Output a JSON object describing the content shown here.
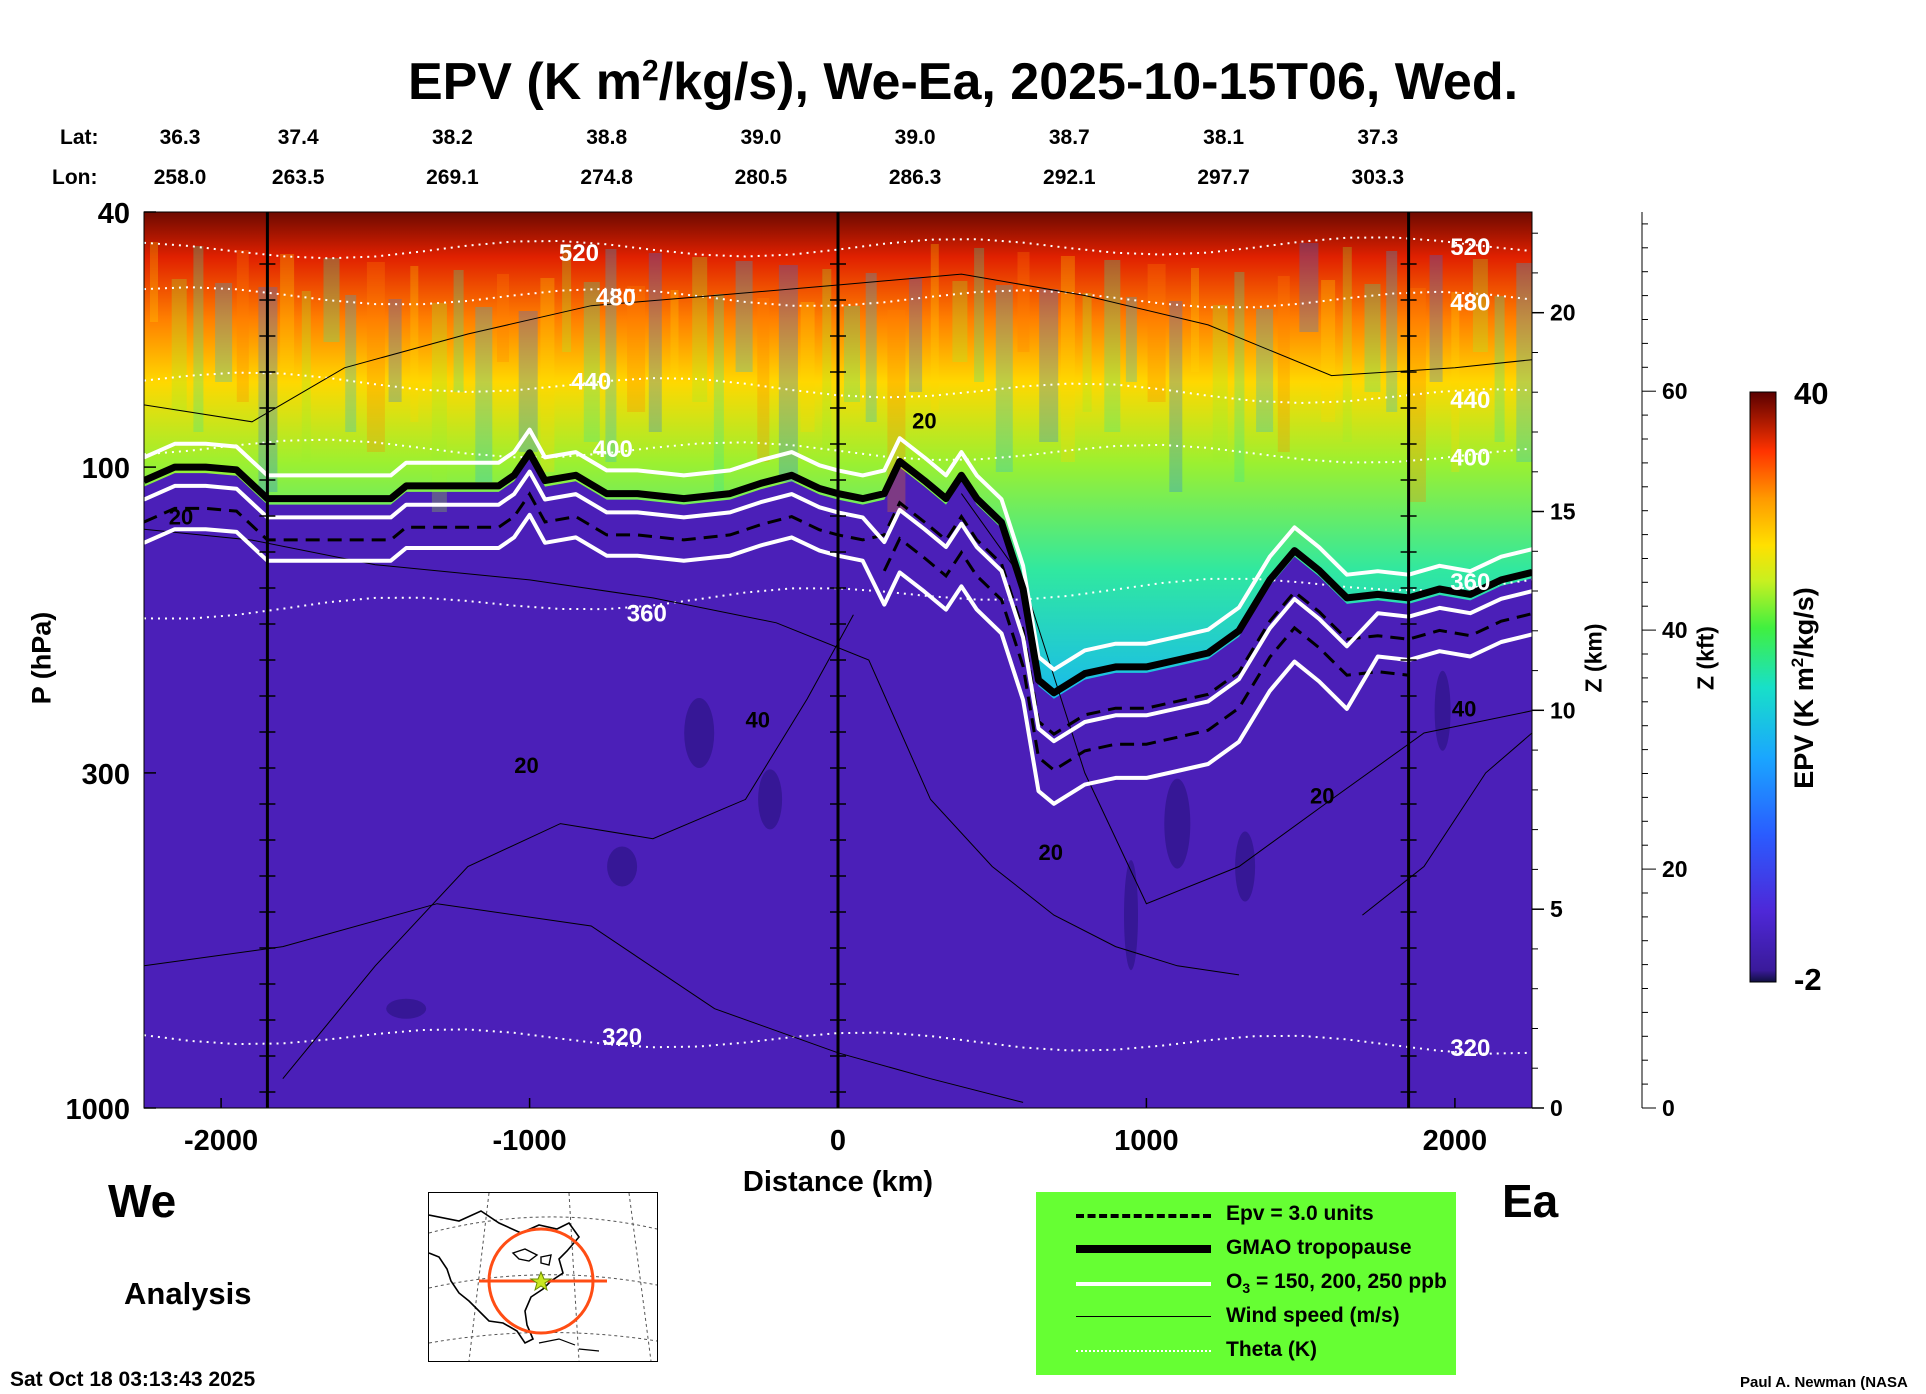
{
  "chart_data": {
    "type": "heatmap",
    "title": "EPV (K m²/kg/s), We-Ea, 2025-10-15T06, Wed.",
    "title_parts": {
      "pre": "EPV (K m",
      "sup": "2",
      "post": "/kg/s), We-Ea, 2025-10-15T06, Wed."
    },
    "xlabel": "Distance (km)",
    "ylabel": "P (hPa)",
    "y2label": "Z (km)",
    "y3label": "Z (kft)",
    "colorbar_label": "EPV (K m²/kg/s)",
    "colorbar_label_parts": {
      "pre": "EPV (K m",
      "sup": "2",
      "post": "/kg/s)"
    },
    "xlim": [
      -2250,
      2250
    ],
    "ylim_hpa": [
      1000,
      40
    ],
    "x_ticks": [
      -2000,
      -1000,
      0,
      1000,
      2000
    ],
    "x_tick_labels": [
      "-2000",
      "-1000",
      "0",
      "1000",
      "2000"
    ],
    "y_ticks_hpa": [
      40,
      100,
      300,
      1000
    ],
    "y_tick_labels": [
      "40",
      "100",
      "300",
      "1000"
    ],
    "z_km_ticks": [
      0,
      5,
      10,
      15,
      20
    ],
    "z_km_labels": [
      "0",
      "5",
      "10",
      "15",
      "20"
    ],
    "z_kft_ticks": [
      0,
      20,
      40,
      60
    ],
    "z_kft_labels": [
      "0",
      "20",
      "40",
      "60"
    ],
    "z_kft_max": 75,
    "colorbar_range": [
      -2,
      40
    ],
    "colorbar_tick_labels": [
      "40",
      "-2"
    ],
    "lat_label": "Lat:",
    "lon_label": "Lon:",
    "lat": [
      "36.3",
      "37.4",
      "38.2",
      "38.8",
      "39.0",
      "39.0",
      "38.7",
      "38.1",
      "37.3"
    ],
    "lon": [
      "258.0",
      "263.5",
      "269.1",
      "274.8",
      "280.5",
      "286.3",
      "292.1",
      "297.7",
      "303.3"
    ],
    "station_distances": [
      -2250,
      -1750,
      -1250,
      -750,
      -250,
      250,
      750,
      1250,
      1750
    ],
    "vertical_marker_lines": [
      -1850,
      0,
      1850
    ],
    "theta_contours": [
      {
        "label": "320",
        "p_west": 770,
        "p_east": 800,
        "label_x": -700
      },
      {
        "label": "360",
        "p_west": 168,
        "p_east": 150,
        "label_x": -620
      },
      {
        "label": "400",
        "p_west": 93,
        "p_east": 96,
        "label_x": -730
      },
      {
        "label": "440",
        "p_west": 73,
        "p_east": 78,
        "label_x": -800
      },
      {
        "label": "480",
        "p_west": 54,
        "p_east": 55,
        "label_x": -720
      },
      {
        "label": "520",
        "p_west": 46,
        "p_east": 45,
        "label_x": -840
      }
    ],
    "wind_speed_labels": [
      {
        "label": "20",
        "x": -2130,
        "p": 123
      },
      {
        "label": "20",
        "x": 280,
        "p": 87
      },
      {
        "label": "40",
        "x": -260,
        "p": 255
      },
      {
        "label": "20",
        "x": -1010,
        "p": 300
      },
      {
        "label": "20",
        "x": 690,
        "p": 410
      },
      {
        "label": "20",
        "x": 1570,
        "p": 335
      },
      {
        "label": "40",
        "x": 2030,
        "p": 245
      }
    ],
    "tropopause_p": [
      [
        -2250,
        105
      ],
      [
        -2150,
        100
      ],
      [
        -2050,
        100
      ],
      [
        -1950,
        101
      ],
      [
        -1850,
        112
      ],
      [
        -1750,
        112
      ],
      [
        -1450,
        112
      ],
      [
        -1400,
        107
      ],
      [
        -1300,
        107
      ],
      [
        -1100,
        107
      ],
      [
        -1050,
        103
      ],
      [
        -1000,
        95
      ],
      [
        -950,
        105
      ],
      [
        -850,
        103
      ],
      [
        -750,
        110
      ],
      [
        -650,
        110
      ],
      [
        -500,
        112
      ],
      [
        -350,
        110
      ],
      [
        -250,
        106
      ],
      [
        -150,
        103
      ],
      [
        -60,
        108
      ],
      [
        0,
        110
      ],
      [
        80,
        112
      ],
      [
        150,
        110
      ],
      [
        200,
        98
      ],
      [
        280,
        105
      ],
      [
        350,
        112
      ],
      [
        400,
        103
      ],
      [
        450,
        112
      ],
      [
        530,
        122
      ],
      [
        600,
        155
      ],
      [
        650,
        215
      ],
      [
        700,
        225
      ],
      [
        800,
        210
      ],
      [
        900,
        205
      ],
      [
        1000,
        205
      ],
      [
        1100,
        200
      ],
      [
        1200,
        195
      ],
      [
        1300,
        180
      ],
      [
        1400,
        150
      ],
      [
        1480,
        135
      ],
      [
        1560,
        145
      ],
      [
        1650,
        160
      ],
      [
        1750,
        158
      ],
      [
        1850,
        160
      ],
      [
        1950,
        155
      ],
      [
        2050,
        158
      ],
      [
        2150,
        150
      ],
      [
        2250,
        146
      ]
    ],
    "ozone_contours_ppb": [
      150,
      200,
      250
    ],
    "epv_contour_units": 3.0,
    "legend": {
      "epv": "Epv = 3.0 units",
      "trop": "GMAO tropopause",
      "ozone_pre": "O",
      "ozone_sub": "3",
      "ozone_post": " = 150, 200, 250 ppb",
      "wind": "Wind speed (m/s)",
      "theta": "Theta (K)"
    }
  },
  "labels": {
    "west": "We",
    "east": "Ea",
    "analysis": "Analysis",
    "timestamp": "Sat Oct 18 03:13:43 2025",
    "credit": "Paul A. Newman (NASA"
  },
  "colors": {
    "legend_bg": "#66ff33",
    "troposphere": "#4b1fb8",
    "ozone_line": "#ffffff",
    "theta_line": "#ffffff",
    "orange_track": "#ff4d14"
  }
}
